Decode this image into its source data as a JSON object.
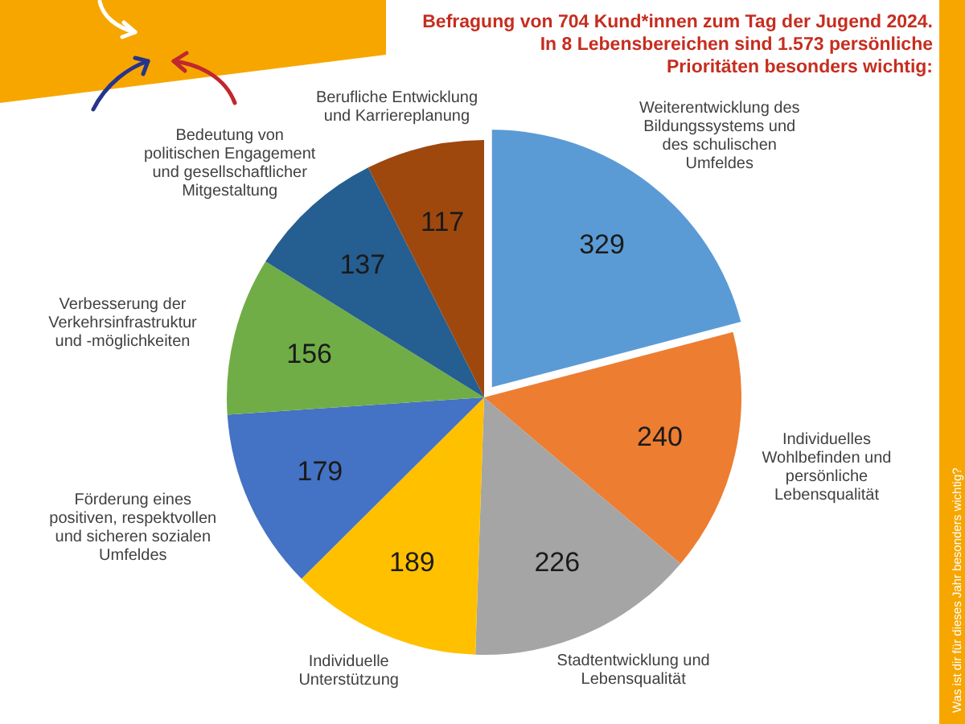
{
  "chart_data": {
    "type": "pie",
    "title": "Befragung von 704 Kund*innen zum Tag der Jugend 2024.\nIn 8 Lebensbereichen sind 1.573 persönliche\nPrioritäten besonders wichtig:",
    "categories": [
      "Weiterentwicklung des\nBildungssystems und\ndes schulischen\nUmfeldes",
      "Individuelles\nWohlbefinden und\npersönliche\nLebensqualität",
      "Stadtentwicklung und\nLebensqualität",
      "Individuelle\nUnterstützung",
      "Förderung eines\npositiven, respektvollen\nund sicheren sozialen\nUmfeldes",
      "Verbesserung der\nVerkehrsinfrastruktur\nund -möglichkeiten",
      "Bedeutung von\npolitischen Engagement\nund gesellschaftlicher\nMitgestaltung",
      "Berufliche Entwicklung\nund Karriereplanung"
    ],
    "values": [
      329,
      240,
      226,
      189,
      179,
      156,
      137,
      117
    ],
    "colors": [
      "#5b9bd5",
      "#ed7d31",
      "#a5a5a5",
      "#ffc000",
      "#4472c4",
      "#70ad47",
      "#255e91",
      "#9e480e"
    ],
    "data_labels": true,
    "annotations": [
      "Was ist dir für dieses Jahr besonders wichtig?"
    ]
  }
}
